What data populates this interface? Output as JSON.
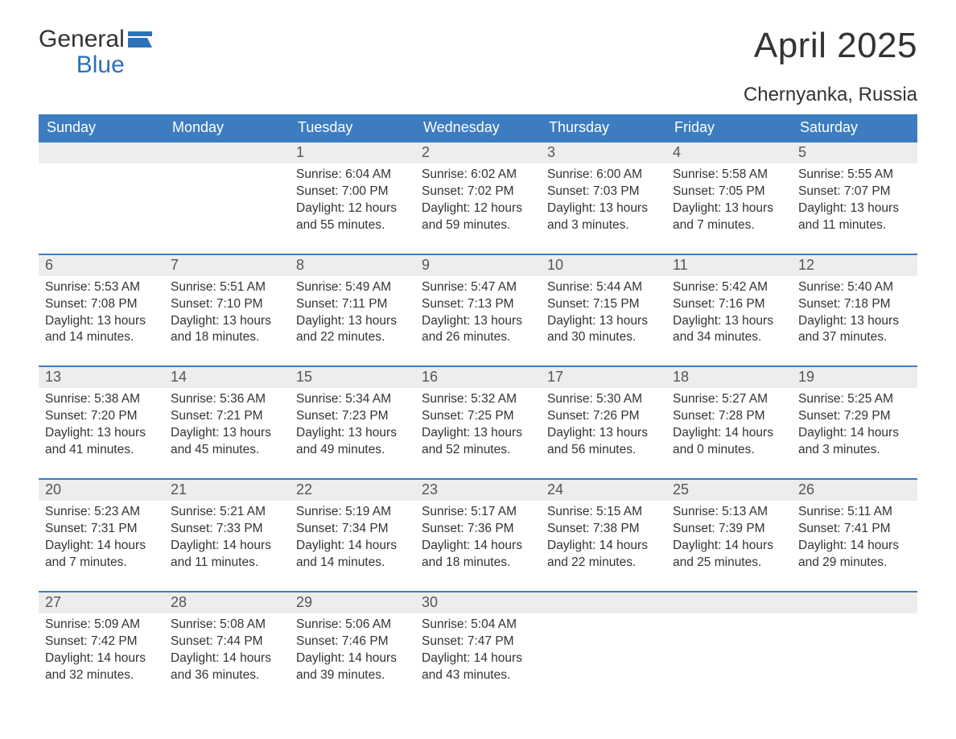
{
  "brand": {
    "name_part1": "General",
    "name_part2": "Blue"
  },
  "month_title": "April 2025",
  "location": "Chernyanka, Russia",
  "colors": {
    "header_bg": "#3d7dbf",
    "header_text": "#ffffff",
    "daynum_bg": "#ededed",
    "border": "#3d7dbf",
    "brand_blue": "#2f71b6",
    "text": "#333333",
    "background": "#ffffff"
  },
  "typography": {
    "month_title_fontsize": 44,
    "location_fontsize": 24,
    "weekday_fontsize": 18,
    "daynum_fontsize": 18,
    "body_fontsize": 15.5
  },
  "weekdays": [
    "Sunday",
    "Monday",
    "Tuesday",
    "Wednesday",
    "Thursday",
    "Friday",
    "Saturday"
  ],
  "weeks": [
    [
      null,
      null,
      {
        "n": "1",
        "sunrise": "6:04 AM",
        "sunset": "7:00 PM",
        "daylight": "12 hours and 55 minutes."
      },
      {
        "n": "2",
        "sunrise": "6:02 AM",
        "sunset": "7:02 PM",
        "daylight": "12 hours and 59 minutes."
      },
      {
        "n": "3",
        "sunrise": "6:00 AM",
        "sunset": "7:03 PM",
        "daylight": "13 hours and 3 minutes."
      },
      {
        "n": "4",
        "sunrise": "5:58 AM",
        "sunset": "7:05 PM",
        "daylight": "13 hours and 7 minutes."
      },
      {
        "n": "5",
        "sunrise": "5:55 AM",
        "sunset": "7:07 PM",
        "daylight": "13 hours and 11 minutes."
      }
    ],
    [
      {
        "n": "6",
        "sunrise": "5:53 AM",
        "sunset": "7:08 PM",
        "daylight": "13 hours and 14 minutes."
      },
      {
        "n": "7",
        "sunrise": "5:51 AM",
        "sunset": "7:10 PM",
        "daylight": "13 hours and 18 minutes."
      },
      {
        "n": "8",
        "sunrise": "5:49 AM",
        "sunset": "7:11 PM",
        "daylight": "13 hours and 22 minutes."
      },
      {
        "n": "9",
        "sunrise": "5:47 AM",
        "sunset": "7:13 PM",
        "daylight": "13 hours and 26 minutes."
      },
      {
        "n": "10",
        "sunrise": "5:44 AM",
        "sunset": "7:15 PM",
        "daylight": "13 hours and 30 minutes."
      },
      {
        "n": "11",
        "sunrise": "5:42 AM",
        "sunset": "7:16 PM",
        "daylight": "13 hours and 34 minutes."
      },
      {
        "n": "12",
        "sunrise": "5:40 AM",
        "sunset": "7:18 PM",
        "daylight": "13 hours and 37 minutes."
      }
    ],
    [
      {
        "n": "13",
        "sunrise": "5:38 AM",
        "sunset": "7:20 PM",
        "daylight": "13 hours and 41 minutes."
      },
      {
        "n": "14",
        "sunrise": "5:36 AM",
        "sunset": "7:21 PM",
        "daylight": "13 hours and 45 minutes."
      },
      {
        "n": "15",
        "sunrise": "5:34 AM",
        "sunset": "7:23 PM",
        "daylight": "13 hours and 49 minutes."
      },
      {
        "n": "16",
        "sunrise": "5:32 AM",
        "sunset": "7:25 PM",
        "daylight": "13 hours and 52 minutes."
      },
      {
        "n": "17",
        "sunrise": "5:30 AM",
        "sunset": "7:26 PM",
        "daylight": "13 hours and 56 minutes."
      },
      {
        "n": "18",
        "sunrise": "5:27 AM",
        "sunset": "7:28 PM",
        "daylight": "14 hours and 0 minutes."
      },
      {
        "n": "19",
        "sunrise": "5:25 AM",
        "sunset": "7:29 PM",
        "daylight": "14 hours and 3 minutes."
      }
    ],
    [
      {
        "n": "20",
        "sunrise": "5:23 AM",
        "sunset": "7:31 PM",
        "daylight": "14 hours and 7 minutes."
      },
      {
        "n": "21",
        "sunrise": "5:21 AM",
        "sunset": "7:33 PM",
        "daylight": "14 hours and 11 minutes."
      },
      {
        "n": "22",
        "sunrise": "5:19 AM",
        "sunset": "7:34 PM",
        "daylight": "14 hours and 14 minutes."
      },
      {
        "n": "23",
        "sunrise": "5:17 AM",
        "sunset": "7:36 PM",
        "daylight": "14 hours and 18 minutes."
      },
      {
        "n": "24",
        "sunrise": "5:15 AM",
        "sunset": "7:38 PM",
        "daylight": "14 hours and 22 minutes."
      },
      {
        "n": "25",
        "sunrise": "5:13 AM",
        "sunset": "7:39 PM",
        "daylight": "14 hours and 25 minutes."
      },
      {
        "n": "26",
        "sunrise": "5:11 AM",
        "sunset": "7:41 PM",
        "daylight": "14 hours and 29 minutes."
      }
    ],
    [
      {
        "n": "27",
        "sunrise": "5:09 AM",
        "sunset": "7:42 PM",
        "daylight": "14 hours and 32 minutes."
      },
      {
        "n": "28",
        "sunrise": "5:08 AM",
        "sunset": "7:44 PM",
        "daylight": "14 hours and 36 minutes."
      },
      {
        "n": "29",
        "sunrise": "5:06 AM",
        "sunset": "7:46 PM",
        "daylight": "14 hours and 39 minutes."
      },
      {
        "n": "30",
        "sunrise": "5:04 AM",
        "sunset": "7:47 PM",
        "daylight": "14 hours and 43 minutes."
      },
      null,
      null,
      null
    ]
  ],
  "labels": {
    "sunrise_prefix": "Sunrise: ",
    "sunset_prefix": "Sunset: ",
    "daylight_prefix": "Daylight: "
  }
}
